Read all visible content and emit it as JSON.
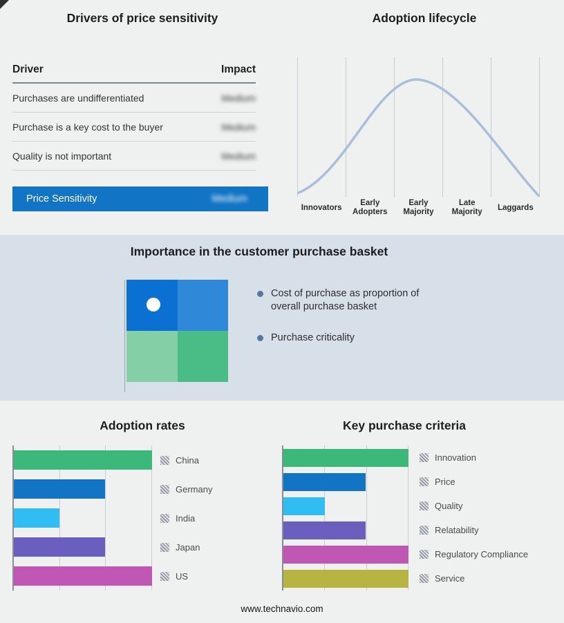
{
  "page": {
    "background": "#eff1f0",
    "band_background": "#d7e0e9",
    "footer": "www.technavio.com"
  },
  "basket_panel": {
    "title": "Importance in the customer purchase basket",
    "bullets": [
      "Cost of purchase as proportion of overall purchase basket",
      "Purchase criticality"
    ],
    "quadrant_colors": [
      "#0a70d1",
      "#3089d8",
      "#84cfa6",
      "#4abc85"
    ],
    "marker_color": "#ffffff",
    "bullet_dot_color": "#53779d"
  },
  "chart_data": [
    {
      "type": "table",
      "title": "Drivers of price sensitivity",
      "columns": [
        "Driver",
        "Impact"
      ],
      "rows": [
        [
          "Purchases are undifferentiated",
          "Medium"
        ],
        [
          "Purchase is a key cost to the buyer",
          "Medium"
        ],
        [
          "Quality is not important",
          "Medium"
        ]
      ],
      "values_blurred": true,
      "summary": {
        "label": "Price Sensitivity",
        "value": "Medium",
        "color": "#1174c5"
      }
    },
    {
      "type": "line",
      "title": "Adoption lifecycle",
      "shape": "bell-curve",
      "categories": [
        "Innovators",
        "Early Adopters",
        "Early Majority",
        "Late Majority",
        "Laggards"
      ],
      "peak_category": "Early Majority",
      "curve_color": "#a9bed8",
      "grid": true
    },
    {
      "type": "bar",
      "title": "Adoption rates",
      "orientation": "horizontal",
      "categories": [
        "China",
        "Germany",
        "India",
        "Japan",
        "US"
      ],
      "values": [
        100,
        66,
        33,
        66,
        100
      ],
      "xlim": [
        0,
        100
      ],
      "colors": [
        "#3db87b",
        "#1174c5",
        "#30bdf2",
        "#6a5fbf",
        "#c157b4"
      ],
      "legend_position": "right",
      "grid": true
    },
    {
      "type": "bar",
      "title": "Key purchase criteria",
      "orientation": "horizontal",
      "categories": [
        "Innovation",
        "Price",
        "Quality",
        "Relatability",
        "Regulatory Compliance",
        "Service"
      ],
      "values": [
        100,
        66,
        33,
        66,
        100,
        100
      ],
      "xlim": [
        0,
        100
      ],
      "colors": [
        "#3db87b",
        "#1174c5",
        "#30bdf2",
        "#6a5fbf",
        "#c157b4",
        "#b7b441"
      ],
      "legend_position": "right",
      "grid": true
    }
  ]
}
